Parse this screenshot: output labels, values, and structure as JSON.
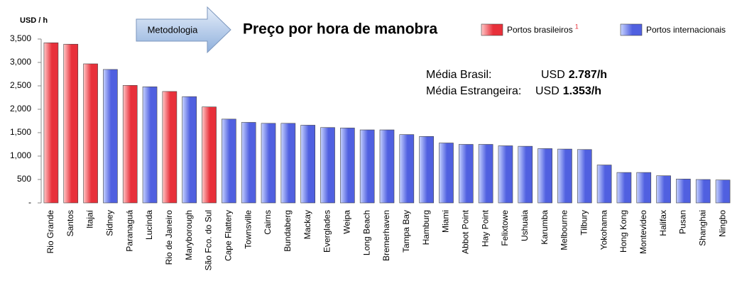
{
  "chart_data": {
    "type": "bar",
    "title": "Preço por hora de manobra",
    "y_label": "USD / h",
    "button": "Metodologia",
    "footnote_marker": "1",
    "categories": [
      "Rio Grande",
      "Santos",
      "Itajaí",
      "Sidney",
      "Paranaguá",
      "Lucinda",
      "Rio de Janeiro",
      "Maryborough",
      "São Fco. do Sul",
      "Cape Flattery",
      "Townsville",
      "Cairns",
      "Bundaberg",
      "Mackay",
      "Everglades",
      "Weipa",
      "Long Beach",
      "Bremerhaven",
      "Tampa Bay",
      "Hamburg",
      "Miami",
      "Abbot Point",
      "Hay Point",
      "Felixtowe",
      "Ushuaia",
      "Karumba",
      "Melbourne",
      "Tilbury",
      "Yokohama",
      "Hong Kong",
      "Montevideo",
      "Halifax",
      "Pusan",
      "Shanghai",
      "Ningbo"
    ],
    "series": [
      {
        "name": "Portos brasileiros",
        "color": "#e8303a",
        "light": "#ffc8c8",
        "values": [
          3420,
          3390,
          2970,
          null,
          2510,
          null,
          2380,
          null,
          2050,
          null,
          null,
          null,
          null,
          null,
          null,
          null,
          null,
          null,
          null,
          null,
          null,
          null,
          null,
          null,
          null,
          null,
          null,
          null,
          null,
          null,
          null,
          null,
          null,
          null,
          null
        ]
      },
      {
        "name": "Portos internacionais",
        "color": "#5060e0",
        "light": "#c8d4ff",
        "values": [
          null,
          null,
          null,
          2850,
          null,
          2480,
          null,
          2270,
          null,
          1790,
          1720,
          1700,
          1700,
          1660,
          1610,
          1600,
          1560,
          1560,
          1460,
          1420,
          1280,
          1250,
          1250,
          1220,
          1210,
          1160,
          1150,
          1140,
          810,
          650,
          650,
          580,
          510,
          500,
          490
        ]
      }
    ],
    "annotations": [
      {
        "label": "Média Brasil:",
        "prefix": "USD",
        "value": "2.787/h"
      },
      {
        "label": "Média Estrangeira:",
        "prefix": "USD",
        "value": "1.353/h"
      }
    ],
    "ylim": [
      0,
      3500
    ],
    "yticks": [
      {
        "value": 0,
        "label": "-"
      },
      500,
      {
        "value": 1000,
        "label": "1,000"
      },
      {
        "value": 1500,
        "label": "1,500"
      },
      {
        "value": 2000,
        "label": "2,000"
      },
      {
        "value": 2500,
        "label": "2,500"
      },
      {
        "value": 3000,
        "label": "3,000"
      },
      {
        "value": 3500,
        "label": "3,500"
      }
    ],
    "grid": false
  }
}
